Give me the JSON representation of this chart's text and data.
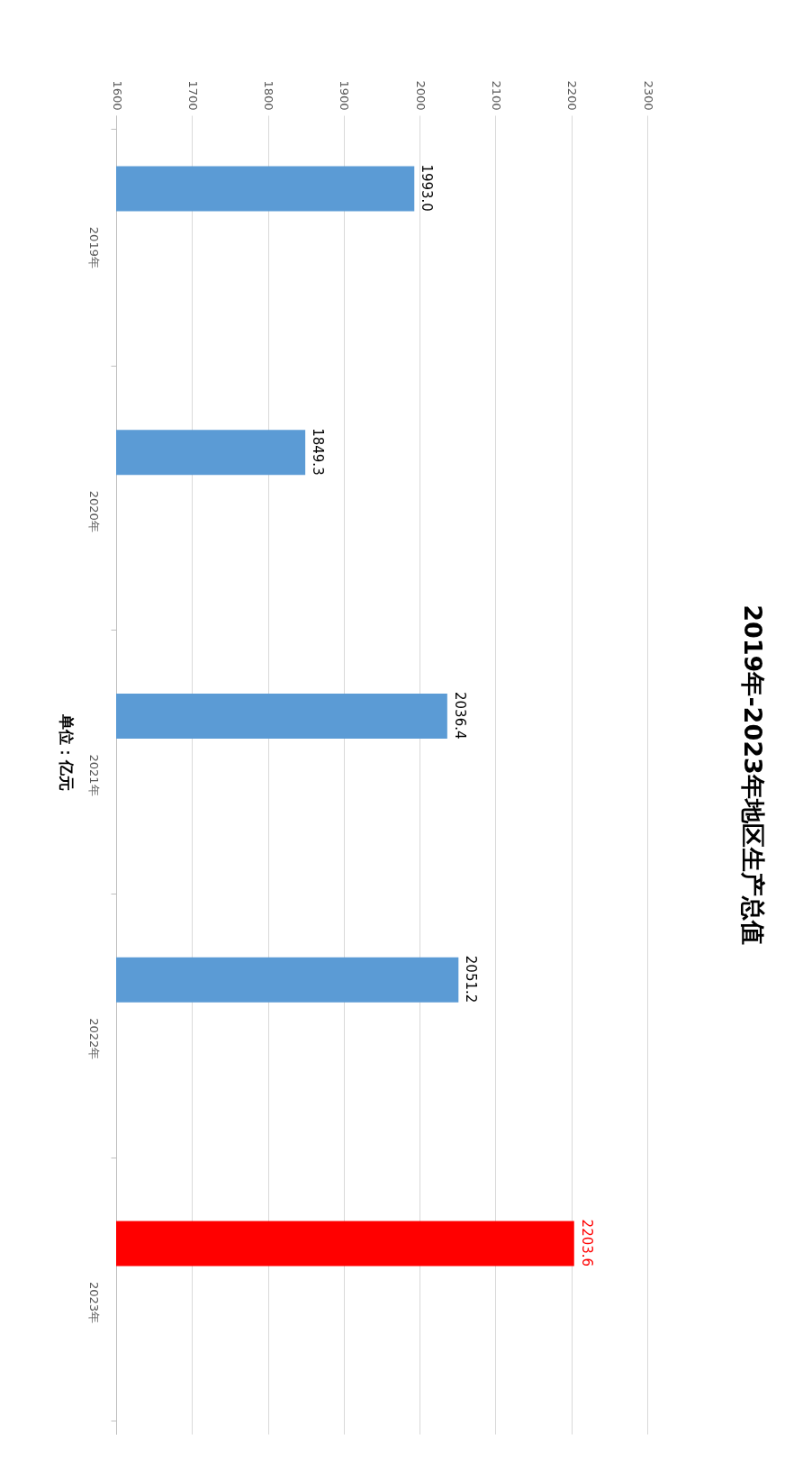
{
  "chart_data": {
    "type": "bar",
    "title": "2019年-2023年地区生产总值",
    "orientation": "horizontal",
    "categories": [
      "2019年",
      "2020年",
      "2021年",
      "2022年",
      "2023年"
    ],
    "values": [
      1993.0,
      1849.3,
      2036.4,
      2051.2,
      2203.6
    ],
    "colors": [
      "#5b9bd5",
      "#5b9bd5",
      "#5b9bd5",
      "#5b9bd5",
      "#ff0000"
    ],
    "xlim": [
      1600,
      2300
    ],
    "xticks": [
      1600,
      1700,
      1800,
      1900,
      2000,
      2100,
      2200,
      2300
    ],
    "grid": "x",
    "value_labels": [
      "1993.0",
      "1849.3",
      "2036.4",
      "2051.2",
      "2203.6"
    ],
    "annotations": [
      "单位：亿元"
    ]
  }
}
